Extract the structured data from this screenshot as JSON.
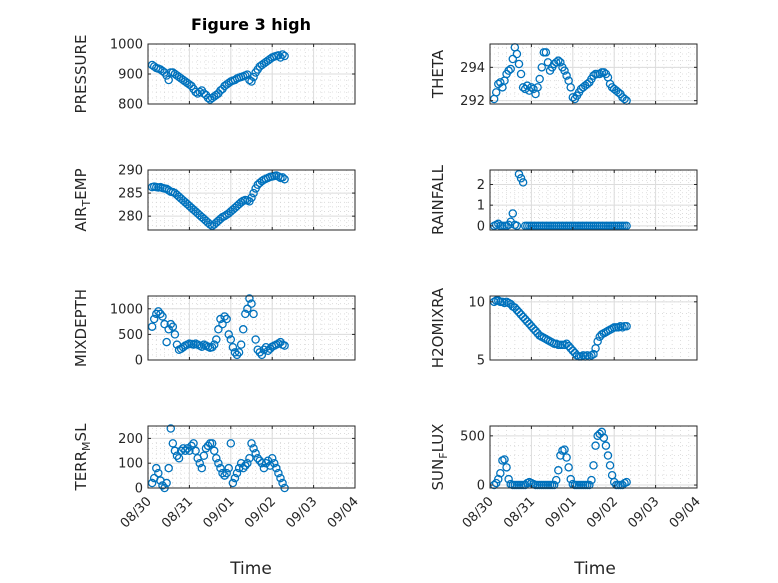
{
  "figure": {
    "title": "Figure 3 high",
    "xlabel": "Time",
    "marker_color": "#0072bd",
    "xtick_labels": [
      "08/30",
      "08/31",
      "09/01",
      "09/02",
      "09/03",
      "09/04"
    ]
  },
  "chart_data": [
    {
      "type": "scatter",
      "ylabel": "PRESSURE",
      "ylim": [
        800,
        1000
      ],
      "yticks": [
        800,
        900,
        1000
      ],
      "grid": true,
      "x": [
        0.1,
        0.15,
        0.2,
        0.25,
        0.3,
        0.35,
        0.4,
        0.45,
        0.5,
        0.55,
        0.6,
        0.65,
        0.7,
        0.75,
        0.8,
        0.85,
        0.9,
        0.95,
        1.0,
        1.05,
        1.1,
        1.15,
        1.2,
        1.25,
        1.3,
        1.35,
        1.4,
        1.45,
        1.5,
        1.55,
        1.6,
        1.65,
        1.7,
        1.75,
        1.8,
        1.85,
        1.9,
        1.95,
        2.0,
        2.05,
        2.1,
        2.15,
        2.2,
        2.25,
        2.3,
        2.35,
        2.4,
        2.45,
        2.5,
        2.55,
        2.6,
        2.65,
        2.7,
        2.75,
        2.8,
        2.85,
        2.9,
        2.95,
        3.0,
        3.05,
        3.1,
        3.15,
        3.2,
        3.25,
        3.3
      ],
      "y": [
        930,
        925,
        920,
        918,
        915,
        910,
        905,
        895,
        880,
        905,
        905,
        900,
        895,
        890,
        885,
        880,
        875,
        870,
        865,
        860,
        850,
        840,
        835,
        840,
        845,
        835,
        830,
        820,
        815,
        820,
        825,
        830,
        835,
        845,
        850,
        860,
        865,
        870,
        875,
        878,
        880,
        885,
        888,
        890,
        892,
        895,
        898,
        880,
        875,
        890,
        905,
        915,
        925,
        930,
        935,
        940,
        945,
        950,
        955,
        958,
        960,
        962,
        955,
        965,
        960
      ]
    },
    {
      "type": "scatter",
      "ylabel": "THETA",
      "ylim": [
        291.8,
        295.4
      ],
      "yticks": [
        292,
        294
      ],
      "grid": true,
      "x": [
        0.1,
        0.15,
        0.2,
        0.25,
        0.3,
        0.35,
        0.4,
        0.45,
        0.5,
        0.55,
        0.6,
        0.65,
        0.7,
        0.75,
        0.8,
        0.85,
        0.9,
        0.95,
        1.0,
        1.05,
        1.1,
        1.15,
        1.2,
        1.25,
        1.3,
        1.35,
        1.4,
        1.45,
        1.5,
        1.55,
        1.6,
        1.65,
        1.7,
        1.75,
        1.8,
        1.85,
        1.9,
        1.95,
        2.0,
        2.05,
        2.1,
        2.15,
        2.2,
        2.25,
        2.3,
        2.35,
        2.4,
        2.45,
        2.5,
        2.55,
        2.6,
        2.65,
        2.7,
        2.75,
        2.8,
        2.85,
        2.9,
        2.95,
        3.0,
        3.05,
        3.1,
        3.15,
        3.2,
        3.25,
        3.3
      ],
      "y": [
        292.1,
        292.5,
        293.0,
        293.1,
        292.8,
        293.2,
        293.6,
        293.8,
        293.9,
        294.5,
        295.2,
        294.8,
        294.2,
        293.6,
        292.8,
        292.7,
        292.9,
        292.6,
        292.8,
        292.7,
        292.4,
        292.8,
        293.3,
        294.0,
        294.9,
        294.9,
        294.3,
        293.8,
        294.0,
        294.2,
        294.3,
        294.4,
        294.3,
        294.0,
        293.8,
        293.5,
        293.2,
        292.8,
        292.2,
        292.1,
        292.3,
        292.5,
        292.7,
        292.8,
        292.9,
        293.0,
        293.1,
        293.3,
        293.5,
        293.6,
        293.6,
        293.6,
        293.7,
        293.7,
        293.6,
        293.4,
        293.0,
        292.8,
        292.7,
        292.6,
        292.5,
        292.4,
        292.2,
        292.1,
        292.0
      ]
    },
    {
      "type": "scatter",
      "ylabel": "AIR_TEMP",
      "ylim": [
        277,
        290
      ],
      "yticks": [
        280,
        285,
        290
      ],
      "grid": true,
      "x": [
        0.1,
        0.15,
        0.2,
        0.25,
        0.3,
        0.35,
        0.4,
        0.45,
        0.5,
        0.55,
        0.6,
        0.65,
        0.7,
        0.75,
        0.8,
        0.85,
        0.9,
        0.95,
        1.0,
        1.05,
        1.1,
        1.15,
        1.2,
        1.25,
        1.3,
        1.35,
        1.4,
        1.45,
        1.5,
        1.55,
        1.6,
        1.65,
        1.7,
        1.75,
        1.8,
        1.85,
        1.9,
        1.95,
        2.0,
        2.05,
        2.1,
        2.15,
        2.2,
        2.25,
        2.3,
        2.35,
        2.4,
        2.45,
        2.5,
        2.55,
        2.6,
        2.65,
        2.7,
        2.75,
        2.8,
        2.85,
        2.9,
        2.95,
        3.0,
        3.05,
        3.1,
        3.15,
        3.2,
        3.25,
        3.3
      ],
      "y": [
        286.3,
        286.4,
        286.3,
        286.2,
        286.3,
        286.1,
        286.0,
        285.9,
        285.6,
        285.3,
        285.2,
        285.0,
        284.6,
        284.2,
        283.8,
        283.4,
        283.0,
        282.6,
        282.2,
        281.8,
        281.4,
        281.0,
        280.6,
        280.2,
        279.8,
        279.4,
        279.0,
        278.6,
        278.2,
        277.9,
        278.2,
        278.6,
        279.0,
        279.4,
        279.8,
        280.0,
        280.3,
        280.6,
        281.0,
        281.4,
        281.8,
        282.2,
        282.6,
        283.0,
        283.3,
        283.5,
        283.4,
        283.2,
        284.0,
        285.0,
        286.0,
        286.8,
        287.2,
        287.6,
        287.9,
        288.1,
        288.3,
        288.5,
        288.6,
        288.7,
        288.8,
        288.6,
        288.3,
        288.4,
        288.0
      ]
    },
    {
      "type": "scatter",
      "ylabel": "RAINFALL",
      "ylim": [
        -0.2,
        2.7
      ],
      "yticks": [
        0,
        1,
        2
      ],
      "grid": true,
      "x": [
        0.1,
        0.15,
        0.2,
        0.25,
        0.3,
        0.35,
        0.4,
        0.45,
        0.5,
        0.55,
        0.6,
        0.65,
        0.7,
        0.75,
        0.8,
        0.85,
        0.9,
        0.95,
        1.0,
        1.05,
        1.1,
        1.15,
        1.2,
        1.25,
        1.3,
        1.35,
        1.4,
        1.45,
        1.5,
        1.55,
        1.6,
        1.65,
        1.7,
        1.75,
        1.8,
        1.85,
        1.9,
        1.95,
        2.0,
        2.05,
        2.1,
        2.15,
        2.2,
        2.25,
        2.3,
        2.35,
        2.4,
        2.45,
        2.5,
        2.55,
        2.6,
        2.65,
        2.7,
        2.75,
        2.8,
        2.85,
        2.9,
        2.95,
        3.0,
        3.05,
        3.1,
        3.15,
        3.2,
        3.25,
        3.3
      ],
      "y": [
        0.0,
        0.05,
        0.1,
        0.0,
        0.0,
        0.0,
        0.0,
        0.05,
        0.2,
        0.6,
        0.05,
        0.0,
        2.5,
        2.3,
        2.1,
        0.0,
        0.0,
        0.0,
        0.0,
        0.0,
        0.0,
        0.0,
        0.0,
        0.0,
        0.0,
        0.0,
        0.0,
        0.0,
        0.0,
        0.0,
        0.0,
        0.0,
        0.0,
        0.0,
        0.0,
        0.0,
        0.0,
        0.0,
        0.0,
        0.0,
        0.0,
        0.0,
        0.0,
        0.0,
        0.0,
        0.0,
        0.0,
        0.0,
        0.0,
        0.0,
        0.0,
        0.0,
        0.0,
        0.0,
        0.0,
        0.0,
        0.0,
        0.0,
        0.0,
        0.0,
        0.0,
        0.0,
        0.0,
        0.0,
        0.0
      ]
    },
    {
      "type": "scatter",
      "ylabel": "MIXDEPTH",
      "ylim": [
        0,
        1250
      ],
      "yticks": [
        0,
        500,
        1000
      ],
      "grid": true,
      "x": [
        0.1,
        0.15,
        0.2,
        0.25,
        0.3,
        0.35,
        0.4,
        0.45,
        0.5,
        0.55,
        0.6,
        0.65,
        0.7,
        0.75,
        0.8,
        0.85,
        0.9,
        0.95,
        1.0,
        1.05,
        1.1,
        1.15,
        1.2,
        1.25,
        1.3,
        1.35,
        1.4,
        1.45,
        1.5,
        1.55,
        1.6,
        1.65,
        1.7,
        1.75,
        1.8,
        1.85,
        1.9,
        1.95,
        2.0,
        2.05,
        2.1,
        2.15,
        2.2,
        2.25,
        2.3,
        2.35,
        2.4,
        2.45,
        2.5,
        2.55,
        2.6,
        2.65,
        2.7,
        2.75,
        2.8,
        2.85,
        2.9,
        2.95,
        3.0,
        3.05,
        3.1,
        3.15,
        3.2,
        3.25,
        3.3
      ],
      "y": [
        650,
        800,
        900,
        950,
        900,
        850,
        700,
        350,
        600,
        700,
        650,
        500,
        300,
        200,
        220,
        250,
        280,
        300,
        320,
        310,
        300,
        320,
        300,
        280,
        260,
        300,
        280,
        260,
        240,
        250,
        300,
        400,
        600,
        800,
        700,
        850,
        800,
        500,
        400,
        250,
        150,
        100,
        150,
        300,
        600,
        900,
        1000,
        1200,
        1100,
        900,
        400,
        200,
        150,
        100,
        200,
        250,
        180,
        220,
        260,
        280,
        300,
        320,
        350,
        300,
        280
      ]
    },
    {
      "type": "scatter",
      "ylabel": "H2OMIXRA",
      "ylim": [
        5,
        10.5
      ],
      "yticks": [
        5,
        10
      ],
      "grid": true,
      "x": [
        0.1,
        0.15,
        0.2,
        0.25,
        0.3,
        0.35,
        0.4,
        0.45,
        0.5,
        0.55,
        0.6,
        0.65,
        0.7,
        0.75,
        0.8,
        0.85,
        0.9,
        0.95,
        1.0,
        1.05,
        1.1,
        1.15,
        1.2,
        1.25,
        1.3,
        1.35,
        1.4,
        1.45,
        1.5,
        1.55,
        1.6,
        1.65,
        1.7,
        1.75,
        1.8,
        1.85,
        1.9,
        1.95,
        2.0,
        2.05,
        2.1,
        2.15,
        2.2,
        2.25,
        2.3,
        2.35,
        2.4,
        2.45,
        2.5,
        2.55,
        2.6,
        2.65,
        2.7,
        2.75,
        2.8,
        2.85,
        2.9,
        2.95,
        3.0,
        3.05,
        3.1,
        3.15,
        3.2,
        3.25,
        3.3
      ],
      "y": [
        10.0,
        10.1,
        10.1,
        10.0,
        10.0,
        9.9,
        10.0,
        9.9,
        9.8,
        9.6,
        9.5,
        9.3,
        9.1,
        8.9,
        8.7,
        8.5,
        8.3,
        8.1,
        7.9,
        7.7,
        7.5,
        7.3,
        7.1,
        7.0,
        6.9,
        6.8,
        6.7,
        6.6,
        6.5,
        6.4,
        6.4,
        6.3,
        6.3,
        6.3,
        6.3,
        6.4,
        6.2,
        6.0,
        5.8,
        5.6,
        5.4,
        5.3,
        5.3,
        5.4,
        5.3,
        5.4,
        5.3,
        5.4,
        5.5,
        6.0,
        6.6,
        7.0,
        7.2,
        7.3,
        7.4,
        7.5,
        7.6,
        7.7,
        7.8,
        7.8,
        7.8,
        7.9,
        7.8,
        7.9,
        7.9
      ]
    },
    {
      "type": "scatter",
      "ylabel": "TERR_MSL",
      "ylim": [
        0,
        250
      ],
      "yticks": [
        0,
        100,
        200
      ],
      "grid": true,
      "x": [
        0.1,
        0.15,
        0.2,
        0.25,
        0.3,
        0.35,
        0.4,
        0.45,
        0.5,
        0.55,
        0.6,
        0.65,
        0.7,
        0.75,
        0.8,
        0.85,
        0.9,
        0.95,
        1.0,
        1.05,
        1.1,
        1.15,
        1.2,
        1.25,
        1.3,
        1.35,
        1.4,
        1.45,
        1.5,
        1.55,
        1.6,
        1.65,
        1.7,
        1.75,
        1.8,
        1.85,
        1.9,
        1.95,
        2.0,
        2.05,
        2.1,
        2.15,
        2.2,
        2.25,
        2.3,
        2.35,
        2.4,
        2.45,
        2.5,
        2.55,
        2.6,
        2.65,
        2.7,
        2.75,
        2.8,
        2.85,
        2.9,
        2.95,
        3.0,
        3.05,
        3.1,
        3.15,
        3.2,
        3.25,
        3.3
      ],
      "y": [
        20,
        40,
        80,
        60,
        30,
        10,
        0,
        20,
        80,
        240,
        180,
        150,
        130,
        120,
        150,
        160,
        150,
        160,
        150,
        170,
        180,
        150,
        120,
        100,
        80,
        130,
        160,
        170,
        180,
        180,
        150,
        120,
        100,
        80,
        60,
        50,
        60,
        80,
        180,
        20,
        40,
        60,
        80,
        100,
        80,
        90,
        100,
        120,
        180,
        160,
        140,
        120,
        110,
        100,
        80,
        100,
        110,
        90,
        120,
        100,
        80,
        60,
        40,
        20,
        0
      ]
    },
    {
      "type": "scatter",
      "ylabel": "SUN_FLUX",
      "ylim": [
        -30,
        600
      ],
      "yticks": [
        0,
        500
      ],
      "grid": true,
      "x": [
        0.1,
        0.15,
        0.2,
        0.25,
        0.3,
        0.35,
        0.4,
        0.45,
        0.5,
        0.55,
        0.6,
        0.65,
        0.7,
        0.75,
        0.8,
        0.85,
        0.9,
        0.95,
        1.0,
        1.05,
        1.1,
        1.15,
        1.2,
        1.25,
        1.3,
        1.35,
        1.4,
        1.45,
        1.5,
        1.55,
        1.6,
        1.65,
        1.7,
        1.75,
        1.8,
        1.85,
        1.9,
        1.95,
        2.0,
        2.05,
        2.1,
        2.15,
        2.2,
        2.25,
        2.3,
        2.35,
        2.4,
        2.45,
        2.5,
        2.55,
        2.6,
        2.65,
        2.7,
        2.75,
        2.8,
        2.85,
        2.9,
        2.95,
        3.0,
        3.05,
        3.1,
        3.15,
        3.2,
        3.25,
        3.3
      ],
      "y": [
        0,
        20,
        60,
        120,
        250,
        260,
        180,
        60,
        10,
        0,
        0,
        0,
        0,
        0,
        0,
        0,
        20,
        30,
        20,
        10,
        0,
        0,
        0,
        0,
        0,
        0,
        0,
        0,
        0,
        0,
        50,
        150,
        300,
        350,
        360,
        280,
        180,
        60,
        10,
        0,
        0,
        0,
        0,
        0,
        0,
        0,
        0,
        50,
        200,
        400,
        500,
        520,
        540,
        480,
        400,
        300,
        200,
        100,
        30,
        0,
        0,
        0,
        0,
        20,
        30
      ]
    }
  ]
}
